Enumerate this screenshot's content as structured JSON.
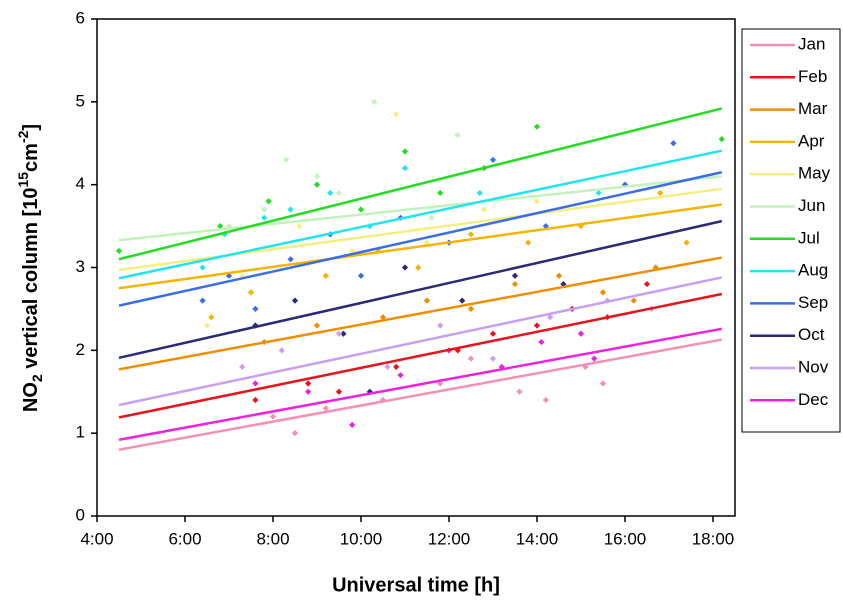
{
  "chart_data": {
    "type": "scatter",
    "x_label": "Universal time [h]",
    "y_label": {
      "a": "NO",
      "sub": "2",
      "b": " vertical column [10",
      "sup": "15",
      "c": "cm",
      "sup2": "-2",
      "d": "]"
    },
    "xlim": [
      4,
      18.5
    ],
    "ylim": [
      0,
      6
    ],
    "xticks": [
      {
        "value": 4,
        "label": "4:00"
      },
      {
        "value": 6,
        "label": "6:00"
      },
      {
        "value": 8,
        "label": "8:00"
      },
      {
        "value": 10,
        "label": "10:00"
      },
      {
        "value": 12,
        "label": "12:00"
      },
      {
        "value": 14,
        "label": "14:00"
      },
      {
        "value": 16,
        "label": "16:00"
      },
      {
        "value": 18,
        "label": "18:00"
      }
    ],
    "yticks": [
      0,
      1,
      2,
      3,
      4,
      5,
      6
    ],
    "series": [
      {
        "name": "Jan",
        "color": "#f490b8",
        "x": [
          8.5,
          9.2,
          10.5,
          11.8,
          12.5,
          13.6,
          14.2,
          15.1,
          15.5,
          8.0
        ],
        "values": [
          1.0,
          1.3,
          1.4,
          1.6,
          1.9,
          1.5,
          1.4,
          1.8,
          1.6,
          1.2
        ],
        "fit_x": [
          4.5,
          18.2
        ],
        "fit_values": [
          0.8,
          2.13
        ]
      },
      {
        "name": "Feb",
        "color": "#e8141c",
        "x": [
          7.6,
          8.8,
          9.5,
          10.8,
          12.2,
          13.0,
          14.0,
          14.8,
          15.6,
          16.5
        ],
        "values": [
          1.4,
          1.6,
          1.5,
          1.8,
          2.0,
          2.2,
          2.3,
          2.5,
          2.4,
          2.8
        ],
        "fit_x": [
          4.5,
          18.2
        ],
        "fit_values": [
          1.19,
          2.68
        ]
      },
      {
        "name": "Mar",
        "color": "#f08c00",
        "x": [
          7.8,
          9.0,
          10.5,
          11.5,
          12.5,
          13.5,
          14.5,
          15.5,
          16.7,
          16.2
        ],
        "values": [
          2.1,
          2.3,
          2.4,
          2.6,
          2.5,
          2.8,
          2.9,
          2.7,
          3.0,
          2.6
        ],
        "fit_x": [
          4.5,
          18.2
        ],
        "fit_values": [
          1.77,
          3.12
        ]
      },
      {
        "name": "Apr",
        "color": "#f5b400",
        "x": [
          6.6,
          7.5,
          9.2,
          10.4,
          11.3,
          12.5,
          13.8,
          15.0,
          16.8,
          17.4
        ],
        "values": [
          2.4,
          2.7,
          2.9,
          3.2,
          3.0,
          3.4,
          3.3,
          3.5,
          3.9,
          3.3
        ],
        "fit_x": [
          4.5,
          18.2
        ],
        "fit_values": [
          2.75,
          3.76
        ]
      },
      {
        "name": "May",
        "color": "#f5ee80",
        "x": [
          6.5,
          7.3,
          8.6,
          9.8,
          10.8,
          11.5,
          12.8,
          14.0
        ],
        "values": [
          2.3,
          2.9,
          3.5,
          3.2,
          4.85,
          3.3,
          3.7,
          3.8
        ],
        "fit_x": [
          4.5,
          18.2
        ],
        "fit_values": [
          2.97,
          3.95
        ]
      },
      {
        "name": "Jun",
        "color": "#c4f2bc",
        "x": [
          7.0,
          8.3,
          9.5,
          10.3,
          11.6,
          12.2,
          9.0,
          7.8
        ],
        "values": [
          3.5,
          4.3,
          3.9,
          5.0,
          3.6,
          4.6,
          4.1,
          3.7
        ],
        "fit_x": [
          4.5,
          18.2
        ],
        "fit_values": [
          3.33,
          4.1
        ]
      },
      {
        "name": "Jul",
        "color": "#22dd22",
        "x": [
          4.5,
          6.8,
          7.9,
          9.0,
          10.0,
          11.0,
          11.8,
          12.8,
          14.0,
          18.2
        ],
        "values": [
          3.2,
          3.5,
          3.8,
          4.0,
          3.7,
          4.4,
          3.9,
          4.2,
          4.7,
          4.55
        ],
        "fit_x": [
          4.5,
          18.2
        ],
        "fit_values": [
          3.1,
          4.92
        ]
      },
      {
        "name": "Aug",
        "color": "#22e4f0",
        "x": [
          6.4,
          6.9,
          7.8,
          8.4,
          9.3,
          10.2,
          11.0,
          12.7,
          15.4
        ],
        "values": [
          3.0,
          3.4,
          3.6,
          3.7,
          3.9,
          3.5,
          4.2,
          3.9,
          3.9
        ],
        "fit_x": [
          4.5,
          18.2
        ],
        "fit_values": [
          2.87,
          4.41
        ]
      },
      {
        "name": "Sep",
        "color": "#3a6ee8",
        "x": [
          6.4,
          7.0,
          7.6,
          8.4,
          9.3,
          10.0,
          10.9,
          12.0,
          13.0,
          14.2,
          16.0,
          17.1
        ],
        "values": [
          2.6,
          2.9,
          2.5,
          3.1,
          3.4,
          2.9,
          3.6,
          3.3,
          4.3,
          3.5,
          4.0,
          4.5
        ],
        "fit_x": [
          4.5,
          18.2
        ],
        "fit_values": [
          2.54,
          4.15
        ]
      },
      {
        "name": "Oct",
        "color": "#2a2a78",
        "x": [
          7.6,
          8.5,
          9.6,
          10.2,
          11.0,
          12.3,
          13.5,
          14.6
        ],
        "values": [
          2.3,
          2.6,
          2.2,
          1.5,
          3.0,
          2.6,
          2.9,
          2.8
        ],
        "fit_x": [
          4.5,
          18.2
        ],
        "fit_values": [
          1.91,
          3.56
        ]
      },
      {
        "name": "Nov",
        "color": "#c8a0f0",
        "x": [
          7.3,
          8.2,
          9.5,
          10.6,
          11.8,
          13.0,
          14.3,
          15.6,
          16.6
        ],
        "values": [
          1.8,
          2.0,
          2.2,
          1.8,
          2.3,
          1.9,
          2.4,
          2.6,
          2.5
        ],
        "fit_x": [
          4.5,
          18.2
        ],
        "fit_values": [
          1.34,
          2.88
        ]
      },
      {
        "name": "Dec",
        "color": "#f020e0",
        "x": [
          7.6,
          8.8,
          9.8,
          10.9,
          12.0,
          13.2,
          14.1,
          15.0,
          15.3
        ],
        "values": [
          1.6,
          1.5,
          1.1,
          1.7,
          2.0,
          1.8,
          2.1,
          2.2,
          1.9
        ],
        "fit_x": [
          4.5,
          18.2
        ],
        "fit_values": [
          0.92,
          2.26
        ]
      }
    ]
  }
}
